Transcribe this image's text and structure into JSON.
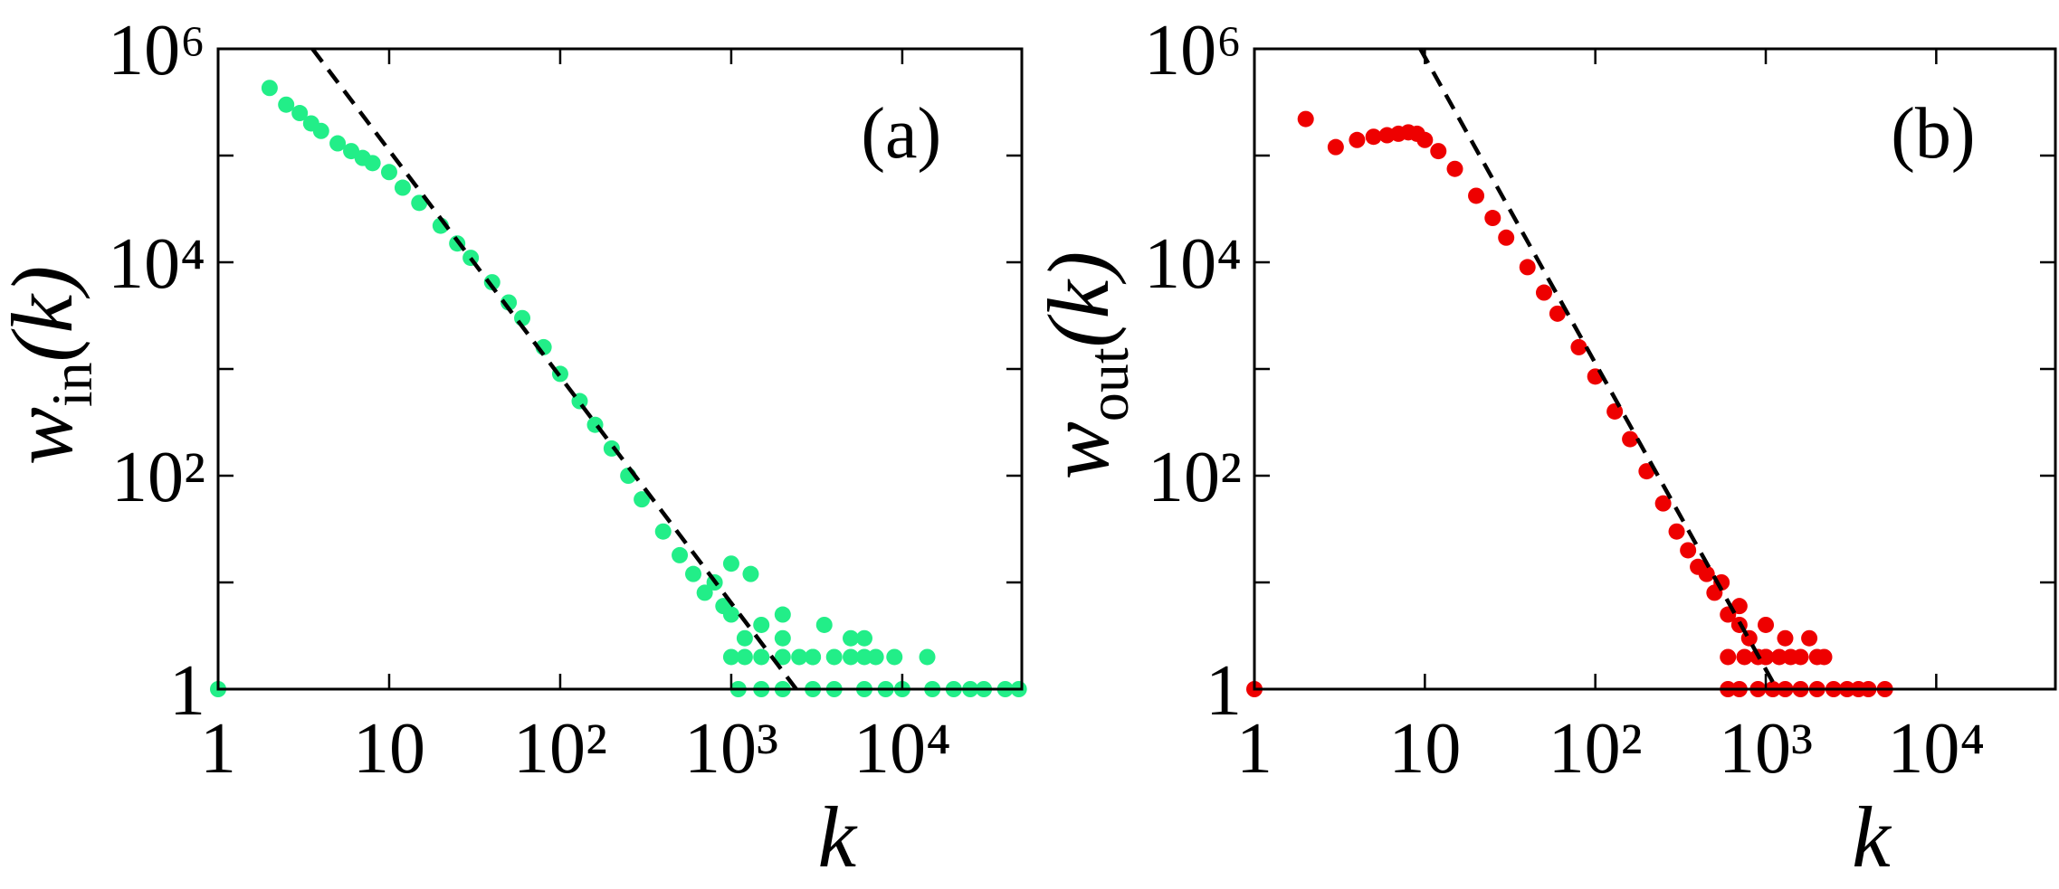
{
  "chart_data": [
    {
      "type": "scatter",
      "label": "(a)",
      "xlabel": "k",
      "ylabel": {
        "symbol": "w",
        "subscript": "in",
        "argument": "(k)"
      },
      "log_x": true,
      "log_y": true,
      "xlim": [
        1,
        50000
      ],
      "ylim": [
        1,
        1000000
      ],
      "xticks": [
        1,
        10,
        {
          "value": 100,
          "label": "10²"
        },
        {
          "value": 1000,
          "label": "10³"
        },
        {
          "value": 10000,
          "label": "10⁴"
        }
      ],
      "yticks": [
        1,
        {
          "value": 100,
          "label": "10²"
        },
        {
          "value": 10000,
          "label": "10⁴"
        },
        {
          "value": 1000000,
          "label": "10⁶"
        }
      ],
      "yminor": [
        10,
        1000,
        100000
      ],
      "series": [
        {
          "color": "#22ee88",
          "x": [
            1,
            2,
            2.5,
            3,
            3.5,
            4,
            5,
            6,
            7,
            8,
            10,
            12,
            15,
            20,
            25,
            30,
            40,
            50,
            60,
            80,
            100,
            130,
            160,
            200,
            250,
            300,
            400,
            500,
            600,
            700,
            800,
            900,
            1000,
            1200,
            1500,
            2000,
            3000,
            1000,
            1500,
            2500,
            4000,
            6000,
            9000,
            14000,
            5000,
            1100,
            2000,
            4000,
            8000,
            15000,
            25000,
            40000,
            1000,
            1300,
            2000,
            3500,
            6000,
            1500,
            3000,
            6000,
            10000,
            20000,
            30000,
            48000,
            1200,
            2000,
            3000,
            5000,
            7000
          ],
          "values": [
            1,
            430000,
            300000,
            250000,
            200000,
            170000,
            130000,
            110000,
            95000,
            85000,
            70000,
            50000,
            36000,
            22000,
            15000,
            11000,
            6500,
            4200,
            3000,
            1600,
            900,
            500,
            300,
            180,
            100,
            60,
            30,
            18,
            12,
            8,
            10,
            6,
            5,
            3,
            4,
            3,
            2,
            2,
            2,
            2,
            2,
            2,
            2,
            2,
            3,
            1,
            1,
            1,
            1,
            1,
            1,
            1,
            15,
            12,
            5,
            4,
            3,
            1,
            1,
            1,
            1,
            1,
            1,
            1,
            2,
            2,
            2,
            2,
            2
          ]
        }
      ],
      "fit": {
        "color": "#000000",
        "dashed": true,
        "x": [
          3.56,
          2400
        ],
        "values": [
          1000000,
          1
        ]
      }
    },
    {
      "type": "scatter",
      "label": "(b)",
      "xlabel": "k",
      "ylabel": {
        "symbol": "w",
        "subscript": "out",
        "argument": "(k)"
      },
      "log_x": true,
      "log_y": true,
      "xlim": [
        1,
        50000
      ],
      "ylim": [
        1,
        1000000
      ],
      "xticks": [
        1,
        10,
        {
          "value": 100,
          "label": "10²"
        },
        {
          "value": 1000,
          "label": "10³"
        },
        {
          "value": 10000,
          "label": "10⁴"
        }
      ],
      "yticks": [
        1,
        {
          "value": 100,
          "label": "10²"
        },
        {
          "value": 10000,
          "label": "10⁴"
        },
        {
          "value": 1000000,
          "label": "10⁶"
        }
      ],
      "yminor": [
        10,
        1000,
        100000
      ],
      "series": [
        {
          "color": "#ee0000",
          "x": [
            1,
            2,
            3,
            4,
            5,
            6,
            7,
            8,
            9,
            10,
            12,
            15,
            20,
            25,
            30,
            40,
            50,
            60,
            80,
            100,
            130,
            160,
            200,
            250,
            300,
            350,
            400,
            500,
            600,
            700,
            800,
            1000,
            600,
            900,
            1200,
            1600,
            2200,
            600,
            900,
            1300,
            2000,
            3000,
            4000,
            5000,
            450,
            550,
            700,
            1000,
            1300,
            1800,
            700,
            1100,
            1600,
            2500,
            3500,
            750,
            1000,
            1400,
            2000
          ],
          "values": [
            1,
            220000,
            120000,
            140000,
            150000,
            155000,
            160000,
            165000,
            160000,
            140000,
            110000,
            75000,
            42000,
            26000,
            17000,
            9000,
            5200,
            3300,
            1600,
            850,
            400,
            220,
            110,
            55,
            30,
            20,
            14,
            8,
            5,
            4,
            3,
            2,
            2,
            2,
            2,
            2,
            2,
            1,
            1,
            1,
            1,
            1,
            1,
            1,
            12,
            10,
            6,
            4,
            3,
            3,
            1,
            1,
            1,
            1,
            1,
            2,
            2,
            2,
            2
          ]
        }
      ],
      "fit": {
        "color": "#000000",
        "dashed": true,
        "x": [
          9.4,
          1160
        ],
        "values": [
          1000000,
          1
        ]
      }
    }
  ]
}
